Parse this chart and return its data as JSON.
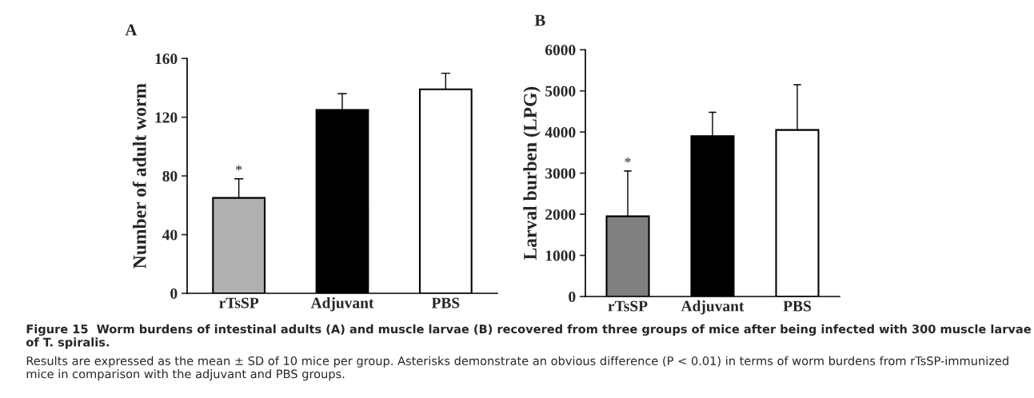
{
  "chart_data": [
    {
      "type": "bar",
      "title": "A",
      "ylabel": "Number of adult worm",
      "categories": [
        "rTsSP",
        "Adjuvant",
        "PBS"
      ],
      "values": [
        65,
        125,
        139
      ],
      "colors": [
        "#b0b0b0",
        "#000000",
        "#ffffff"
      ],
      "errors": [
        [
          65,
          78
        ],
        [
          125,
          136
        ],
        [
          139,
          150
        ]
      ],
      "ylim": [
        0,
        160
      ],
      "yticks": [
        0,
        40,
        80,
        120,
        160
      ],
      "grid": false,
      "annotations": [
        {
          "text": "*",
          "x": "rTsSP",
          "y": 78
        },
        "Figure 15  Worm burdens of intestinal adults (A) and muscle larvae (B) recovered from three groups of mice after being infected with 300 muscle larvae of T. spiralis.",
        "Results are expressed as the mean ± SD of 10 mice per group. Asterisks demonstrate an obvious difference (P < 0.01) in terms of worm burdens from rTsSP-immunized mice in comparison with the adjuvant and PBS groups."
      ]
    },
    {
      "type": "bar",
      "title": "B",
      "ylabel": "Larval burben (LPG)",
      "categories": [
        "rTsSP",
        "Adjuvant",
        "PBS"
      ],
      "values": [
        1950,
        3900,
        4050
      ],
      "colors": [
        "#808080",
        "#000000",
        "#ffffff"
      ],
      "errors": [
        [
          1950,
          3050
        ],
        [
          3900,
          4480
        ],
        [
          4050,
          5150
        ]
      ],
      "ylim": [
        0,
        6000
      ],
      "yticks": [
        0,
        1000,
        2000,
        3000,
        4000,
        5000,
        6000
      ],
      "grid": false,
      "annotations": [
        {
          "text": "*",
          "x": "rTsSP",
          "y": 3050
        }
      ]
    }
  ]
}
